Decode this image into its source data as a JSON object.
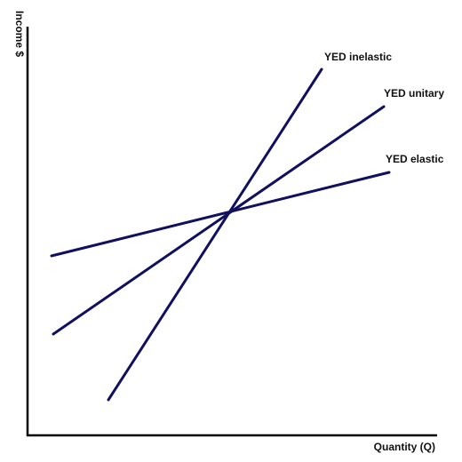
{
  "diagram": {
    "ylabel": "Income $",
    "xlabel": "Quantity (Q)",
    "axis_color": "#000000",
    "line_color": "#101060",
    "lines": [
      {
        "name": "YED inelastic",
        "label": "YED inelastic"
      },
      {
        "name": "YED unitary",
        "label": "YED unitary"
      },
      {
        "name": "YED elastic",
        "label": "YED elastic"
      }
    ]
  }
}
